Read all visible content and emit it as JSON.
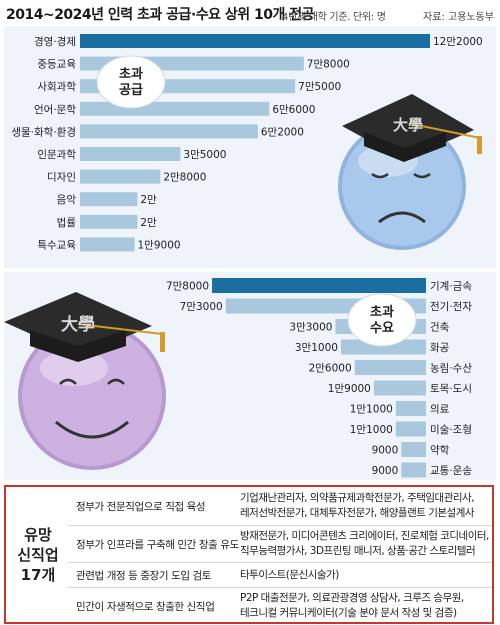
{
  "header": {
    "title": "2014~2024년 인력 초과 공급·수요 상위 10개 전공",
    "subtitle": "4년제 대학 기준. 단위: 명",
    "source": "자료: 고용노동부"
  },
  "chart_data": [
    {
      "type": "bar",
      "orientation": "horizontal",
      "title": "초과 공급",
      "categories": [
        "경영·경제",
        "중등교육",
        "사회과학",
        "언어·문학",
        "생물·화학·환경",
        "인문과학",
        "디자인",
        "음악",
        "법률",
        "특수교육"
      ],
      "values": [
        122000,
        78000,
        75000,
        66000,
        62000,
        35000,
        28000,
        20000,
        20000,
        19000
      ],
      "value_labels": [
        "12만2000",
        "7만8000",
        "7만5000",
        "6만6000",
        "6만2000",
        "3만5000",
        "2만8000",
        "2만",
        "2만",
        "1만9000"
      ],
      "highlight_color": "#1a6ea0",
      "bar_color": "#aac8dd"
    },
    {
      "type": "bar",
      "orientation": "horizontal",
      "title": "초과 수요",
      "categories": [
        "기계·금속",
        "전기·전자",
        "건축",
        "화공",
        "농림·수산",
        "토목·도시",
        "의료",
        "미술·조형",
        "약학",
        "교통·운송"
      ],
      "values": [
        78000,
        73000,
        33000,
        31000,
        26000,
        19000,
        11000,
        11000,
        9000,
        9000
      ],
      "value_labels": [
        "7만8000",
        "7만3000",
        "3만3000",
        "3만1000",
        "2만6000",
        "1만9000",
        "1만1000",
        "1만1000",
        "9000",
        "9000"
      ],
      "highlight_color": "#1a6ea0",
      "bar_color": "#aac8dd"
    }
  ],
  "illustrations": {
    "sad_face_cap_text": "大學",
    "happy_face_cap_text": "大學"
  },
  "jobs": {
    "label": "유망\n신직업\n17개",
    "rows": [
      {
        "policy": "정부가 전문직업으로 직접 육성",
        "jobs": [
          "기업재난관리자, 의약품규제과학전문가, 주택임대관리사,",
          "레저선박전문가, 대체투자전문가, 해양플랜트 기본설계사"
        ]
      },
      {
        "policy": "정부가 인프라를 구축해 민간 창출 유도",
        "jobs": [
          "방재전문가, 미디어콘텐츠 크리에이터, 진로체험 코디네이터,",
          "직무능력평가사, 3D프린팅 매니저, 상품·공간 스토리텔러"
        ]
      },
      {
        "policy": "관련법 개정 등 중장기 도입 검토",
        "jobs": [
          "타투이스트(문신시술가)"
        ]
      },
      {
        "policy": "민간이 자생적으로 창출한 신직업",
        "jobs": [
          "P2P 대출전문가, 의료관광경영 상담사, 크루즈 승무원,",
          "테크니컬 커뮤니케이터(기술 분야 문서 작성 및 검증)"
        ]
      }
    ]
  }
}
